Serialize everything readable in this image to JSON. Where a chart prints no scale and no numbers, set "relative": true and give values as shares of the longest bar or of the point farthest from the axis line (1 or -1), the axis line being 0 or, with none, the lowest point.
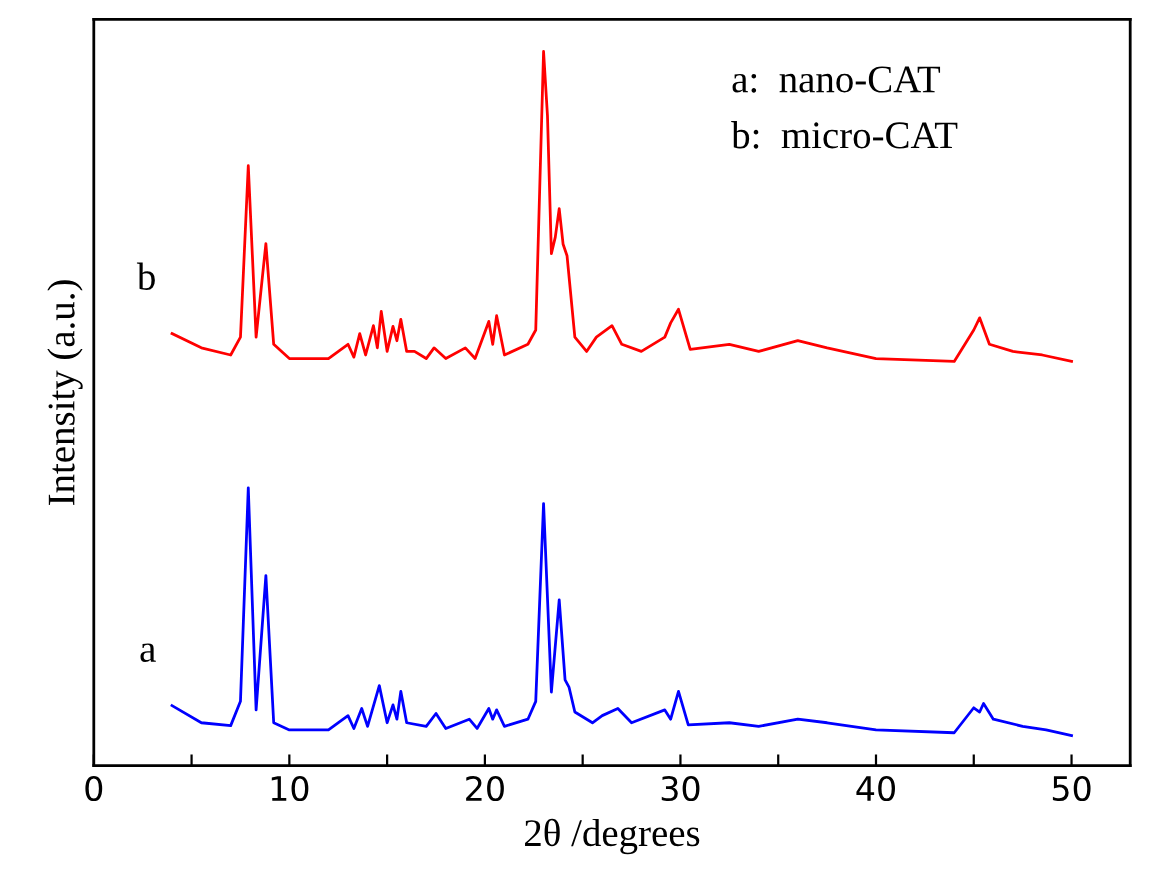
{
  "chart_data": {
    "type": "line",
    "relative": true,
    "xlabel": "2θ /degrees",
    "ylabel": "Intensity (a.u.)",
    "xlim": [
      0,
      53
    ],
    "xticks": [
      0,
      {
        "value": 5,
        "label": null
      },
      10,
      {
        "value": 15,
        "label": null
      },
      20,
      {
        "value": 25,
        "label": null
      },
      30,
      {
        "value": 35,
        "label": null
      },
      40,
      {
        "value": 45,
        "label": null
      },
      50
    ],
    "grid": false,
    "marker": "none",
    "line_style": "solid",
    "annotations": [
      "a:  nano-CAT",
      "b:  micro-CAT"
    ],
    "series": [
      {
        "name": "b",
        "color": "#ff0000",
        "x": [
          4.0,
          5.5,
          7.0,
          7.5,
          7.9,
          8.3,
          8.8,
          9.2,
          10,
          12,
          13,
          13.3,
          13.6,
          13.9,
          14.3,
          14.5,
          14.7,
          15.0,
          15.3,
          15.5,
          15.7,
          16.0,
          16.4,
          17.0,
          17.4,
          18.0,
          19.0,
          19.5,
          20.2,
          20.4,
          20.6,
          21.0,
          22.2,
          22.6,
          23.0,
          23.2,
          23.4,
          23.6,
          23.8,
          24.0,
          24.2,
          24.6,
          25.2,
          25.7,
          26.5,
          27.0,
          28.0,
          29.2,
          29.5,
          29.9,
          30.5,
          32.5,
          34.0,
          36.0,
          37.5,
          40.0,
          44.0,
          45.0,
          45.3,
          45.8,
          47.0,
          48.5,
          50.0
        ],
        "values": [
          0.605,
          0.585,
          0.575,
          0.6,
          0.84,
          0.6,
          0.731,
          0.59,
          0.57,
          0.57,
          0.59,
          0.572,
          0.605,
          0.575,
          0.616,
          0.585,
          0.636,
          0.58,
          0.615,
          0.595,
          0.625,
          0.58,
          0.58,
          0.57,
          0.585,
          0.57,
          0.585,
          0.57,
          0.622,
          0.59,
          0.63,
          0.575,
          0.59,
          0.61,
          1.0,
          0.91,
          0.717,
          0.74,
          0.78,
          0.73,
          0.714,
          0.6,
          0.58,
          0.6,
          0.616,
          0.59,
          0.58,
          0.6,
          0.62,
          0.639,
          0.583,
          0.59,
          0.58,
          0.595,
          0.585,
          0.57,
          0.566,
          0.61,
          0.627,
          0.59,
          0.58,
          0.575,
          0.566
        ]
      },
      {
        "name": "a",
        "color": "#0000ff",
        "x": [
          4.0,
          5.5,
          7.0,
          7.5,
          7.9,
          8.3,
          8.8,
          9.2,
          10,
          12,
          13,
          13.3,
          13.7,
          14.0,
          14.6,
          15.0,
          15.3,
          15.5,
          15.7,
          16.0,
          17.0,
          17.5,
          18.0,
          19.2,
          19.6,
          20.2,
          20.4,
          20.6,
          21.0,
          22.2,
          22.6,
          23.0,
          23.4,
          23.8,
          24.1,
          24.3,
          24.6,
          25.5,
          26.0,
          26.8,
          27.5,
          29.2,
          29.5,
          29.9,
          30.4,
          32.5,
          34.0,
          36.0,
          37.5,
          40.0,
          44.0,
          45.0,
          45.3,
          45.5,
          46.0,
          47.5,
          48.7,
          50.0
        ],
        "values": [
          0.084,
          0.06,
          0.056,
          0.09,
          0.389,
          0.078,
          0.266,
          0.06,
          0.05,
          0.05,
          0.07,
          0.052,
          0.08,
          0.055,
          0.112,
          0.06,
          0.085,
          0.065,
          0.104,
          0.06,
          0.055,
          0.073,
          0.052,
          0.065,
          0.052,
          0.08,
          0.065,
          0.078,
          0.055,
          0.065,
          0.09,
          0.367,
          0.103,
          0.232,
          0.12,
          0.11,
          0.075,
          0.06,
          0.07,
          0.08,
          0.06,
          0.078,
          0.065,
          0.104,
          0.057,
          0.06,
          0.055,
          0.065,
          0.06,
          0.05,
          0.046,
          0.081,
          0.075,
          0.087,
          0.065,
          0.055,
          0.05,
          0.042
        ]
      }
    ]
  }
}
